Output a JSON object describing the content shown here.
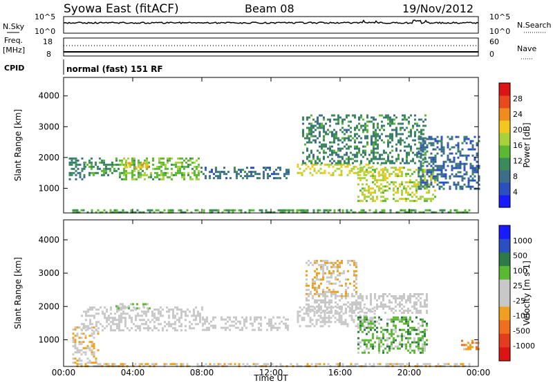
{
  "header": {
    "station": "Syowa East (fitACF)",
    "beam": "Beam 08",
    "date": "19/Nov/2012"
  },
  "top_panels": {
    "nsky_label": "N.Sky",
    "nsearch_label": "N.Search",
    "log_ticks": [
      "10^5",
      "10^0"
    ],
    "freq_label_1": "Freq.",
    "freq_label_2": "[MHz]",
    "freq_ticks": [
      "18",
      "8"
    ],
    "nave_label": "Nave",
    "nave_ticks": [
      "60",
      "0"
    ],
    "cpid_label": "CPID",
    "cpid_text": "normal (fast) 151 RF"
  },
  "x_axis": {
    "label": "Time UT",
    "ticks": [
      "00:00",
      "04:00",
      "08:00",
      "12:00",
      "16:00",
      "20:00",
      "00:00"
    ]
  },
  "colors": {
    "power": [
      "#1a1aff",
      "#2a4fc0",
      "#3c6e8c",
      "#3a8a5a",
      "#5ab832",
      "#a8d23c",
      "#f0c81e",
      "#f08c1e",
      "#e84a1e",
      "#dc1414"
    ],
    "velocity": [
      "#1a1aff",
      "#2a4fc0",
      "#2e7a46",
      "#5ab832",
      "#c8c8c8",
      "#c8c8c8",
      "#f0a01e",
      "#f06e1e",
      "#e63c1e",
      "#dc1414"
    ]
  },
  "chart_data": [
    {
      "type": "heatmap",
      "name": "power",
      "ylabel": "Slant Range [km]",
      "ylim": [
        200,
        4600
      ],
      "xlim_hours": [
        0,
        24
      ],
      "yticks": [
        1000,
        2000,
        3000,
        4000
      ],
      "colorbar": {
        "label": "Power [dB]",
        "ticks": [
          "4",
          "8",
          "12",
          "16",
          "20",
          "24",
          "28"
        ],
        "range": [
          0,
          30
        ]
      },
      "regions": [
        {
          "t0": 0.3,
          "t1": 1.2,
          "r0": 1300,
          "r1": 2000,
          "level": 9
        },
        {
          "t0": 1.2,
          "t1": 3.2,
          "r0": 1400,
          "r1": 2000,
          "level": 11
        },
        {
          "t0": 3.2,
          "t1": 7.8,
          "r0": 1300,
          "r1": 2000,
          "level": 14
        },
        {
          "t0": 3.5,
          "t1": 5.0,
          "r0": 1650,
          "r1": 1850,
          "level": 20
        },
        {
          "t0": 7.8,
          "t1": 13.0,
          "r0": 1300,
          "r1": 1700,
          "level": 8
        },
        {
          "t0": 13.5,
          "t1": 18.5,
          "r0": 1400,
          "r1": 1800,
          "level": 18
        },
        {
          "t0": 13.8,
          "t1": 21.0,
          "r0": 1800,
          "r1": 3400,
          "level": 10
        },
        {
          "t0": 17.0,
          "t1": 21.5,
          "r0": 600,
          "r1": 1700,
          "level": 17
        },
        {
          "t0": 20.5,
          "t1": 24.0,
          "r0": 1000,
          "r1": 2700,
          "level": 7
        },
        {
          "t0": 0.5,
          "t1": 23.5,
          "r0": 220,
          "r1": 320,
          "level": 12
        }
      ]
    },
    {
      "type": "heatmap",
      "name": "velocity",
      "ylabel": "Slant Range [km]",
      "ylim": [
        200,
        4600
      ],
      "xlim_hours": [
        0,
        24
      ],
      "yticks": [
        1000,
        2000,
        3000,
        4000
      ],
      "colorbar": {
        "label": "Velocity [m s-1]",
        "ticks": [
          "1000",
          "500",
          "100",
          "25",
          "-25",
          "-100",
          "-500",
          "-1000"
        ],
        "range": [
          -1000,
          1000
        ]
      },
      "regions": [
        {
          "t0": 0.5,
          "t1": 2.0,
          "r0": 300,
          "r1": 1400,
          "level": -150
        },
        {
          "t0": 1.0,
          "t1": 8.0,
          "r0": 1300,
          "r1": 2000,
          "level": 0
        },
        {
          "t0": 3.0,
          "t1": 5.0,
          "r0": 1900,
          "r1": 2100,
          "level": 80
        },
        {
          "t0": 8.0,
          "t1": 13.0,
          "r0": 1300,
          "r1": 1700,
          "level": 0
        },
        {
          "t0": 13.5,
          "t1": 18.0,
          "r0": 1400,
          "r1": 2000,
          "level": 0
        },
        {
          "t0": 14.0,
          "t1": 17.0,
          "r0": 2300,
          "r1": 3400,
          "level": -200
        },
        {
          "t0": 17.0,
          "t1": 21.0,
          "r0": 600,
          "r1": 1700,
          "level": 300
        },
        {
          "t0": 14.0,
          "t1": 21.0,
          "r0": 1800,
          "r1": 2400,
          "level": 0
        },
        {
          "t0": 23.0,
          "t1": 24.0,
          "r0": 700,
          "r1": 1000,
          "level": -300
        },
        {
          "t0": 0.5,
          "t1": 23.5,
          "r0": 220,
          "r1": 300,
          "level": -150
        }
      ]
    }
  ]
}
